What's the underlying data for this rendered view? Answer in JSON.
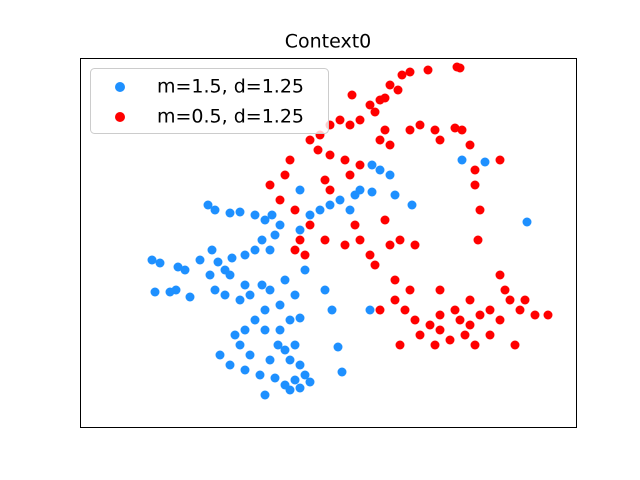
{
  "chart_data": {
    "type": "scatter",
    "title": "Context0",
    "xlim": [
      0,
      496
    ],
    "ylim": [
      0,
      369
    ],
    "legend": "upper left",
    "series": [
      {
        "name": "m=1.5, d=1.25",
        "color": "#1e90ff",
        "x": [
          72,
          80,
          75,
          90,
          98,
          105,
          110,
          96,
          128,
          135,
          150,
          160,
          175,
          185,
          192,
          200,
          182,
          195,
          190,
          175,
          165,
          152,
          138,
          145,
          130,
          135,
          145,
          160,
          170,
          182,
          190,
          205,
          215,
          200,
          185,
          175,
          165,
          155,
          185,
          200,
          210,
          220,
          160,
          170,
          140,
          150,
          165,
          180,
          195,
          205,
          215,
          225,
          220,
          210,
          205,
          215,
          185,
          210,
          220,
          230,
          198,
          190,
          220,
          230,
          240,
          250,
          260,
          275,
          270,
          280,
          292,
          300,
          310,
          292,
          315,
          332,
          382,
          405,
          447,
          258,
          262,
          245,
          252,
          290,
          220,
          225,
          132,
          120,
          150,
          165
        ],
        "values": [
          167,
          164,
          135,
          135,
          160,
          157,
          130,
          137,
          222,
          217,
          214,
          215,
          212,
          207,
          212,
          202,
          187,
          192,
          177,
          177,
          172,
          169,
          165,
          157,
          152,
          137,
          132,
          127,
          132,
          142,
          137,
          147,
          132,
          122,
          117,
          107,
          97,
          92,
          97,
          97,
          107,
          109,
          82,
          72,
          72,
          62,
          57,
          52,
          49,
          42,
          47,
          52,
          62,
          67,
          77,
          82,
          32,
          37,
          39,
          45,
          82,
          67,
          197,
          212,
          217,
          222,
          227,
          232,
          217,
          237,
          262,
          257,
          252,
          235,
          232,
          222,
          267,
          265,
          205,
          80,
          55,
          137,
          117,
          117,
          237,
          157,
          177,
          167,
          152,
          142
        ]
      },
      {
        "name": "m=0.5, d=1.25",
        "color": "#ff0000",
        "x": [
          380,
          377,
          348,
          322,
          330,
          310,
          318,
          300,
          305,
          290,
          272,
          260,
          270,
          280,
          295,
          250,
          240,
          230,
          238,
          250,
          265,
          245,
          250,
          270,
          280,
          300,
          310,
          305,
          330,
          340,
          355,
          360,
          375,
          382,
          390,
          395,
          395,
          400,
          398,
          420,
          210,
          205,
          190,
          200,
          215,
          230,
          220,
          215,
          225,
          245,
          265,
          275,
          280,
          290,
          295,
          310,
          320,
          335,
          305,
          315,
          315,
          300,
          325,
          335,
          340,
          320,
          350,
          360,
          370,
          380,
          390,
          395,
          410,
          420,
          425,
          430,
          440,
          445,
          455,
          468,
          435,
          360,
          375,
          400,
          410,
          330,
          360,
          390,
          420,
          355,
          385
        ],
        "values": [
          359,
          360,
          357,
          352,
          355,
          342,
          337,
          327,
          329,
          322,
          332,
          307,
          302,
          307,
          315,
          302,
          292,
          287,
          277,
          272,
          267,
          247,
          237,
          252,
          262,
          287,
          282,
          297,
          297,
          302,
          297,
          287,
          299,
          297,
          282,
          257,
          242,
          217,
          187,
          267,
          267,
          252,
          242,
          227,
          217,
          202,
          187,
          177,
          172,
          187,
          182,
          202,
          187,
          172,
          162,
          182,
          187,
          182,
          207,
          147,
          127,
          117,
          117,
          107,
          92,
          82,
          102,
          97,
          87,
          107,
          102,
          82,
          92,
          107,
          137,
          127,
          117,
          127,
          112,
          112,
          82,
          112,
          117,
          112,
          117,
          137,
          137,
          127,
          152,
          82,
          92
        ]
      }
    ]
  }
}
